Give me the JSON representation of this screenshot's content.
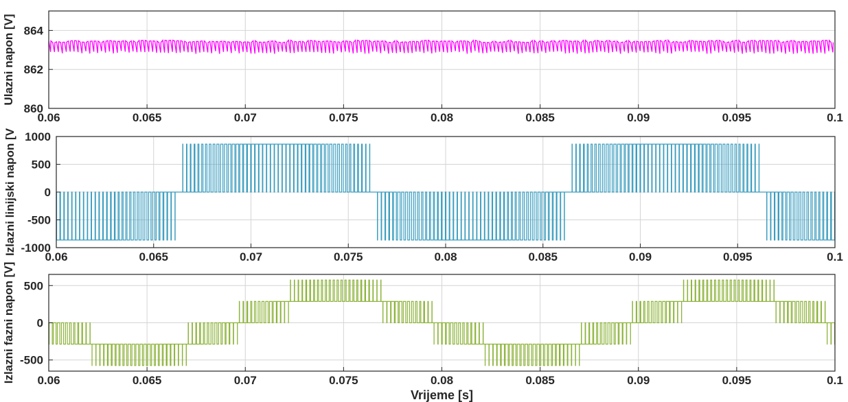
{
  "chart_data": [
    {
      "type": "line",
      "title": "",
      "ylabel": "Ulazni napon [V]",
      "xlabel": "",
      "xlim": [
        0.06,
        0.1
      ],
      "ylim": [
        860,
        865
      ],
      "xticks": [
        0.06,
        0.065,
        0.07,
        0.075,
        0.08,
        0.085,
        0.09,
        0.095,
        0.1
      ],
      "xtick_labels": [
        "0.06",
        "0.065",
        "0.07",
        "0.075",
        "0.08",
        "0.085",
        "0.09",
        "0.095",
        "0.1"
      ],
      "yticks": [
        860,
        862,
        864
      ],
      "ytick_labels": [
        "860",
        "862",
        "864"
      ],
      "grid": true,
      "color": "#ff00ff",
      "series": [
        {
          "signal": "ripple",
          "values_range": [
            862.8,
            863.5
          ],
          "mean": 863.15,
          "ripple_period_s": 0.0002
        }
      ]
    },
    {
      "type": "line",
      "title": "",
      "ylabel": "Izlazni linijski napon [V",
      "xlabel": "",
      "xlim": [
        0.06,
        0.1
      ],
      "ylim": [
        -1000,
        1000
      ],
      "xticks": [
        0.06,
        0.065,
        0.07,
        0.075,
        0.08,
        0.085,
        0.09,
        0.095,
        0.1
      ],
      "xtick_labels": [
        "0.06",
        "0.065",
        "0.07",
        "0.075",
        "0.08",
        "0.085",
        "0.09",
        "0.095",
        "0.1"
      ],
      "yticks": [
        -1000,
        -500,
        0,
        500,
        1000
      ],
      "ytick_labels": [
        "-1000",
        "-500",
        "0",
        "500",
        "1000"
      ],
      "grid": true,
      "color": "#3a9dbf",
      "series": [
        {
          "signal": "pwm-line-voltage",
          "levels": [
            -863,
            0,
            863
          ],
          "fundamental_hz": 50,
          "switching_period_s": 0.0002
        }
      ]
    },
    {
      "type": "line",
      "title": "",
      "ylabel": "Izlazni fazni napon [V]",
      "xlabel": "Vrijeme [s]",
      "xlim": [
        0.06,
        0.1
      ],
      "ylim": [
        -650,
        650
      ],
      "xticks": [
        0.06,
        0.065,
        0.07,
        0.075,
        0.08,
        0.085,
        0.09,
        0.095,
        0.1
      ],
      "xtick_labels": [
        "0.06",
        "0.065",
        "0.07",
        "0.075",
        "0.08",
        "0.085",
        "0.09",
        "0.095",
        "0.1"
      ],
      "yticks": [
        -500,
        0,
        500
      ],
      "ytick_labels": [
        "-500",
        "0",
        "500"
      ],
      "grid": true,
      "color": "#8db33a",
      "series": [
        {
          "signal": "pwm-phase-voltage",
          "levels": [
            -575,
            -288,
            0,
            288,
            575
          ],
          "fundamental_hz": 50,
          "switching_period_s": 0.0002
        }
      ]
    }
  ]
}
